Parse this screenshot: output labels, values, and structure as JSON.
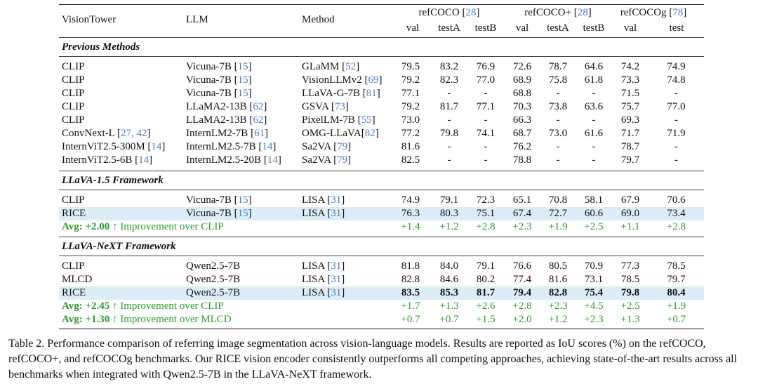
{
  "header": {
    "col_visiontower": "VisionTower",
    "col_llm": "LLM",
    "col_method": "Method",
    "groups": [
      {
        "name": "refCOCO",
        "ref": "28",
        "subs": [
          "val",
          "testA",
          "testB"
        ]
      },
      {
        "name": "refCOCO+",
        "ref": "28",
        "subs": [
          "val",
          "testA",
          "testB"
        ]
      },
      {
        "name": "refCOCOg",
        "ref": "78",
        "subs": [
          "val",
          "test"
        ]
      }
    ]
  },
  "sections": [
    {
      "title": "Previous Methods",
      "rows": [
        {
          "vt": "CLIP",
          "llm": "Vicuna-7B",
          "llm_ref": "15",
          "method": "GLaMM",
          "method_ref": "52",
          "values": [
            "79.5",
            "83.2",
            "76.9",
            "72.6",
            "78.7",
            "64.6",
            "74.2",
            "74.9"
          ]
        },
        {
          "vt": "CLIP",
          "llm": "Vicuna-7B",
          "llm_ref": "15",
          "method": "VisionLLMv2",
          "method_ref": "69",
          "values": [
            "79.2",
            "82.3",
            "77.0",
            "68.9",
            "75.8",
            "61.8",
            "73.3",
            "74.8"
          ]
        },
        {
          "vt": "CLIP",
          "llm": "Vicuna-7B",
          "llm_ref": "15",
          "method": "LLaVA-G-7B",
          "method_ref": "81",
          "values": [
            "77.1",
            "-",
            "-",
            "68.8",
            "-",
            "-",
            "71.5",
            "-"
          ]
        },
        {
          "vt": "CLIP",
          "llm": "LLaMA2-13B",
          "llm_ref": "62",
          "method": "GSVA",
          "method_ref": "73",
          "values": [
            "79.2",
            "81.7",
            "77.1",
            "70.3",
            "73.8",
            "63.6",
            "75.7",
            "77.0"
          ]
        },
        {
          "vt": "CLIP",
          "llm": "LLaMA2-13B",
          "llm_ref": "62",
          "method": "PixelLM-7B",
          "method_ref": "55",
          "values": [
            "73.0",
            "-",
            "-",
            "66.3",
            "-",
            "-",
            "69.3",
            "-"
          ]
        },
        {
          "vt": "ConvNext-L",
          "vt_ref": "27, 42",
          "llm": "InternLM2-7B",
          "llm_ref": "61",
          "method": "OMG-LLaVA",
          "method_ref": "82",
          "method_nospace": true,
          "values": [
            "77.2",
            "79.8",
            "74.1",
            "68.7",
            "73.0",
            "61.6",
            "71.7",
            "71.9"
          ]
        },
        {
          "vt": "InternViT2.5-300M",
          "vt_ref": "14",
          "llm": "InternLM2.5-7B",
          "llm_ref": "14",
          "method": "Sa2VA",
          "method_ref": "79",
          "values": [
            "81.6",
            "-",
            "-",
            "76.2",
            "-",
            "-",
            "78.7",
            "-"
          ]
        },
        {
          "vt": "InternViT2.5-6B",
          "vt_ref": "14",
          "llm": "InternLM2.5-20B",
          "llm_ref": "14",
          "method": "Sa2VA",
          "method_ref": "79",
          "values": [
            "82.5",
            "-",
            "-",
            "78.8",
            "-",
            "-",
            "79.7",
            "-"
          ]
        }
      ]
    },
    {
      "title": "LLaVA-1.5 Framework",
      "rows": [
        {
          "vt": "CLIP",
          "llm": "Vicuna-7B",
          "llm_ref": "15",
          "method": "LISA",
          "method_ref": "31",
          "values": [
            "74.9",
            "79.1",
            "72.3",
            "65.1",
            "70.8",
            "58.1",
            "67.9",
            "70.6"
          ]
        },
        {
          "vt": "RICE",
          "llm": "Vicuna-7B",
          "llm_ref": "15",
          "method": "LISA",
          "method_ref": "31",
          "highlight": true,
          "values": [
            "76.3",
            "80.3",
            "75.1",
            "67.4",
            "72.7",
            "60.6",
            "69.0",
            "73.4"
          ]
        },
        {
          "gain": true,
          "avg": "Avg: +2.00",
          "arrow": "↑",
          "label": "Improvement over CLIP",
          "values": [
            "+1.4",
            "+1.2",
            "+2.8",
            "+2.3",
            "+1.9",
            "+2.5",
            "+1.1",
            "+2.8"
          ]
        }
      ]
    },
    {
      "title": "LLaVA-NeXT Framework",
      "rows": [
        {
          "vt": "CLIP",
          "llm": "Qwen2.5-7B",
          "method": "LISA",
          "method_ref": "31",
          "values": [
            "81.8",
            "84.0",
            "79.1",
            "76.6",
            "80.5",
            "70.9",
            "77.3",
            "78.5"
          ]
        },
        {
          "vt": "MLCD",
          "llm": "Qwen2.5-7B",
          "method": "LISA",
          "method_ref": "31",
          "values": [
            "82.8",
            "84.6",
            "80.2",
            "77.4",
            "81.6",
            "73.1",
            "78.5",
            "79.7"
          ]
        },
        {
          "vt": "RICE",
          "llm": "Qwen2.5-7B",
          "method": "LISA",
          "method_ref": "31",
          "highlight": true,
          "bold_values": true,
          "values": [
            "83.5",
            "85.3",
            "81.7",
            "79.4",
            "82.8",
            "75.4",
            "79.8",
            "80.4"
          ]
        },
        {
          "gain": true,
          "avg": "Avg: +2.45",
          "arrow": "↑",
          "label": "Improvement over CLIP",
          "values": [
            "+1.7",
            "+1.3",
            "+2.6",
            "+2.8",
            "+2.3",
            "+4.5",
            "+2.5",
            "+1.9"
          ]
        },
        {
          "gain": true,
          "avg": "Avg: +1.30",
          "arrow": "↑",
          "label": "Improvement over MLCD",
          "values": [
            "+0.7",
            "+0.7",
            "+1.5",
            "+2.0",
            "+1.2",
            "+2.3",
            "+1.3",
            "+0.7"
          ]
        }
      ]
    }
  ],
  "caption": "Table 2. Performance comparison of referring image segmentation across vision-language models. Results are reported as IoU scores (%) on the refCOCO, refCOCO+, and refCOCOg benchmarks. Our RICE vision encoder consistently outperforms all competing approaches, achieving state-of-the-art results across all benchmarks when integrated with Qwen2.5-7B in the LLaVA-NeXT framework.",
  "colors": {
    "gain": "#2f9a2f",
    "ref": "#4a7fc0",
    "highlight": "#dcedf8"
  }
}
